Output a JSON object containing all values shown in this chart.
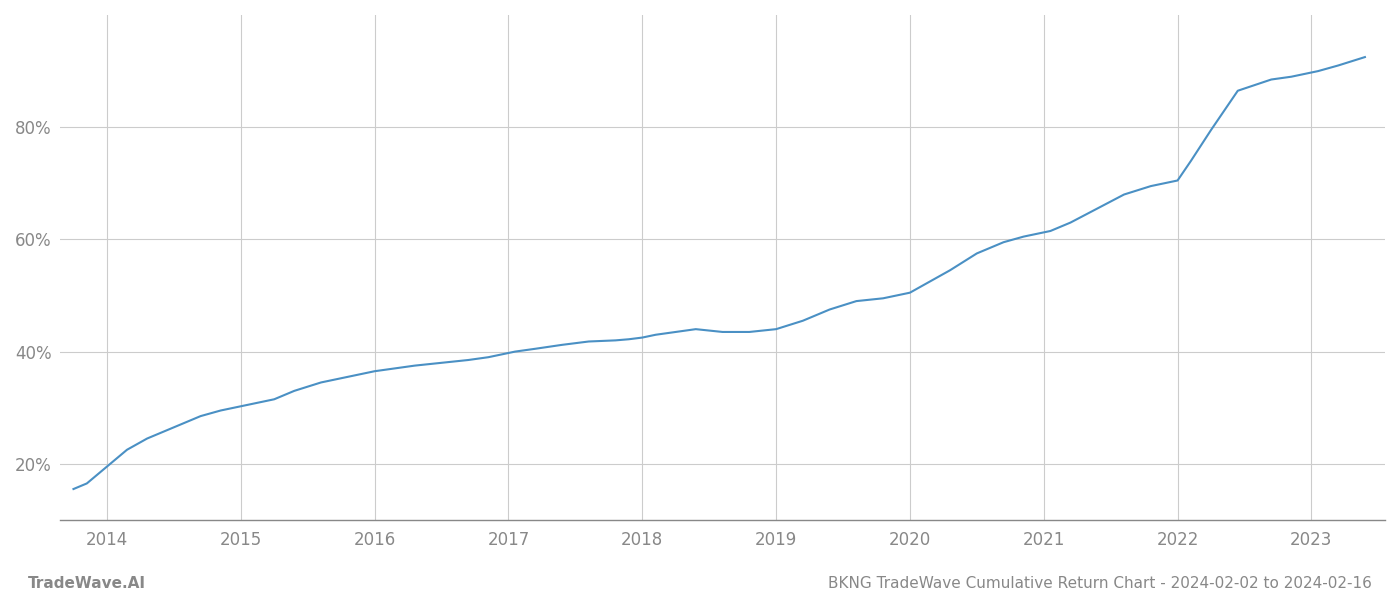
{
  "title": "BKNG TradeWave Cumulative Return Chart - 2024-02-02 to 2024-02-16",
  "watermark": "TradeWave.AI",
  "line_color": "#4a90c4",
  "background_color": "#ffffff",
  "grid_color": "#cccccc",
  "x_years": [
    2014,
    2015,
    2016,
    2017,
    2018,
    2019,
    2020,
    2021,
    2022,
    2023
  ],
  "x_data": [
    2013.75,
    2013.85,
    2013.95,
    2014.05,
    2014.15,
    2014.3,
    2014.5,
    2014.7,
    2014.85,
    2014.95,
    2015.05,
    2015.15,
    2015.25,
    2015.4,
    2015.6,
    2015.8,
    2015.9,
    2016.0,
    2016.15,
    2016.3,
    2016.5,
    2016.7,
    2016.85,
    2016.95,
    2017.05,
    2017.2,
    2017.4,
    2017.6,
    2017.8,
    2017.9,
    2018.0,
    2018.1,
    2018.25,
    2018.4,
    2018.6,
    2018.8,
    2019.0,
    2019.2,
    2019.4,
    2019.6,
    2019.8,
    2020.0,
    2020.15,
    2020.3,
    2020.5,
    2020.7,
    2020.85,
    2020.95,
    2021.05,
    2021.2,
    2021.4,
    2021.6,
    2021.8,
    2021.9,
    2022.0,
    2022.1,
    2022.25,
    2022.45,
    2022.7,
    2022.85,
    2022.95,
    2023.05,
    2023.2,
    2023.4
  ],
  "y_data": [
    15.5,
    16.5,
    18.5,
    20.5,
    22.5,
    24.5,
    26.5,
    28.5,
    29.5,
    30.0,
    30.5,
    31.0,
    31.5,
    33.0,
    34.5,
    35.5,
    36.0,
    36.5,
    37.0,
    37.5,
    38.0,
    38.5,
    39.0,
    39.5,
    40.0,
    40.5,
    41.2,
    41.8,
    42.0,
    42.2,
    42.5,
    43.0,
    43.5,
    44.0,
    43.5,
    43.5,
    44.0,
    45.5,
    47.5,
    49.0,
    49.5,
    50.5,
    52.5,
    54.5,
    57.5,
    59.5,
    60.5,
    61.0,
    61.5,
    63.0,
    65.5,
    68.0,
    69.5,
    70.0,
    70.5,
    74.0,
    79.5,
    86.5,
    88.5,
    89.0,
    89.5,
    90.0,
    91.0,
    92.5
  ],
  "xlim": [
    2013.65,
    2023.55
  ],
  "ylim": [
    10,
    100
  ],
  "yticks": [
    20,
    40,
    60,
    80
  ],
  "title_fontsize": 11,
  "watermark_fontsize": 11,
  "tick_fontsize": 12,
  "tick_color": "#888888",
  "axis_color": "#888888"
}
